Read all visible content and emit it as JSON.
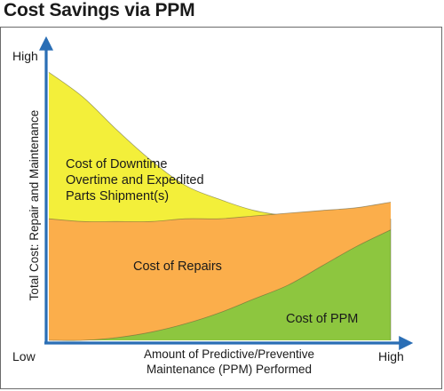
{
  "title": "Cost Savings via PPM",
  "chart_data": {
    "type": "area",
    "title": "Cost Savings via PPM",
    "ylabel": "Total Cost: Repair and Maintenance",
    "xlabel_lines": [
      "Amount of Predictive/Preventive",
      "Maintenance (PPM) Performed"
    ],
    "x_low_label": "Low",
    "x_high_label": "High",
    "y_low_label": "Low",
    "y_high_label": "High",
    "xlim": [
      0,
      1
    ],
    "ylim": [
      0,
      1
    ],
    "x": [
      0,
      0.1,
      0.2,
      0.3,
      0.4,
      0.5,
      0.6,
      0.7,
      0.8,
      0.9,
      1.0
    ],
    "series": [
      {
        "name": "Cost of PPM",
        "label_lines": [
          "Cost of PPM"
        ],
        "color": "#8dc63f",
        "values": [
          0.0,
          0.0,
          0.01,
          0.03,
          0.06,
          0.1,
          0.15,
          0.2,
          0.27,
          0.34,
          0.4
        ]
      },
      {
        "name": "Cost of Repairs",
        "label_lines": [
          "Cost of Repairs"
        ],
        "color": "#fbae4b",
        "values": [
          0.44,
          0.43,
          0.43,
          0.43,
          0.44,
          0.44,
          0.45,
          0.46,
          0.47,
          0.48,
          0.5
        ]
      },
      {
        "name": "Cost of Downtime Overtime and Expedited Parts Shipment(s)",
        "label_lines": [
          "Cost of Downtime",
          "Overtime and Expedited",
          "Parts Shipment(s)"
        ],
        "color": "#f3ef3a",
        "values": [
          0.97,
          0.88,
          0.76,
          0.65,
          0.56,
          0.51,
          0.47,
          0.45,
          0.44,
          0.44,
          0.44
        ]
      }
    ],
    "axis_color": "#2a6eb5"
  }
}
